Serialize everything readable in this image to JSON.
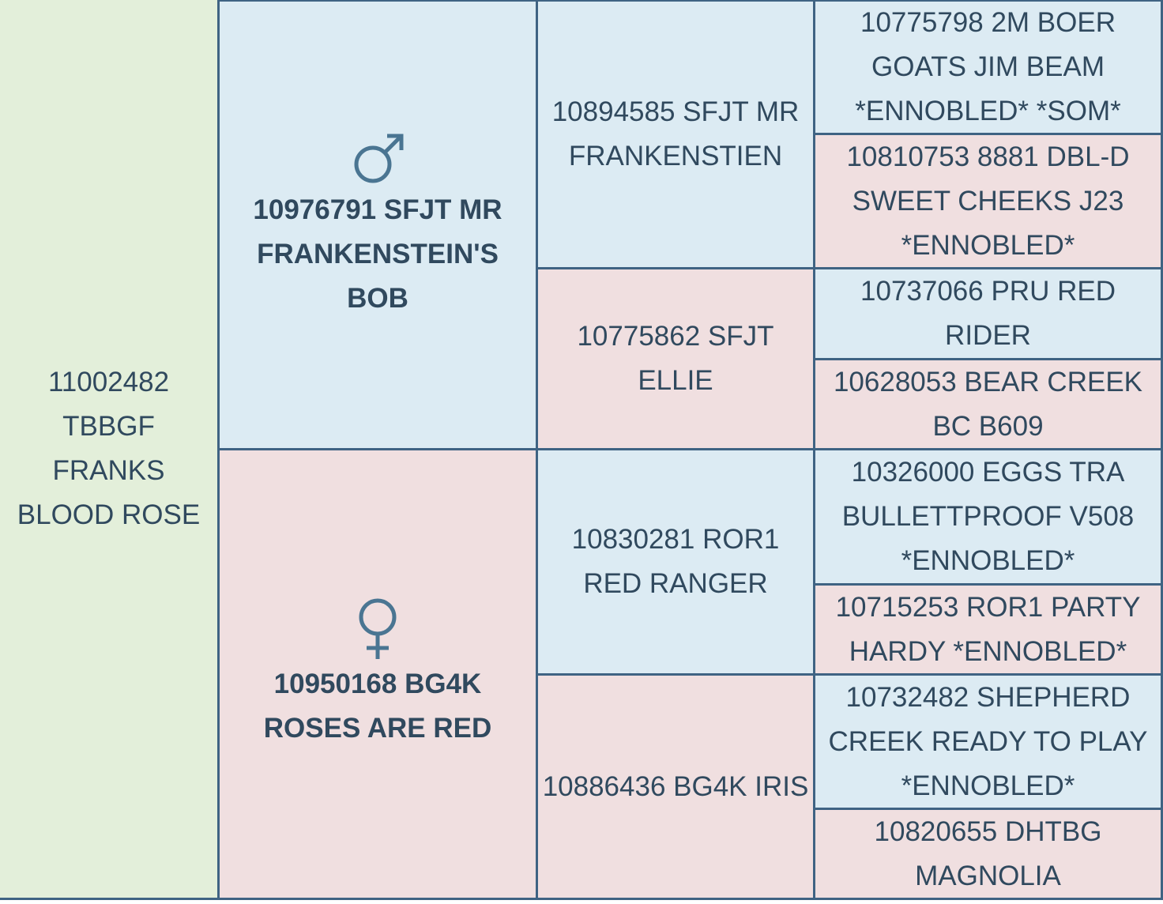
{
  "pedigree": {
    "subject": "11002482 TBBGF FRANKS BLOOD ROSE",
    "parents": [
      "10976791 SFJT MR FRANKENSTEIN'S BOB",
      "10950168 BG4K ROSES ARE RED"
    ],
    "grandparents": [
      "10894585 SFJT MR FRANKENSTIEN",
      "10775862 SFJT ELLIE",
      "10830281 ROR1 RED RANGER",
      "10886436 BG4K IRIS"
    ],
    "great_grandparents": [
      "10775798 2M BOER GOATS JIM BEAM *ENNOBLED* *SOM*",
      "10810753 8881 DBL-D SWEET CHEEKS J23 *ENNOBLED*",
      "10737066 PRU RED RIDER",
      "10628053 BEAR CREEK BC B609",
      "10326000 EGGS TRA BULLETTPROOF V508 *ENNOBLED*",
      "10715253 ROR1 PARTY HARDY *ENNOBLED*",
      "10732482 SHEPHERD CREEK READY TO PLAY *ENNOBLED*",
      "10820655 DHTBG MAGNOLIA"
    ]
  }
}
